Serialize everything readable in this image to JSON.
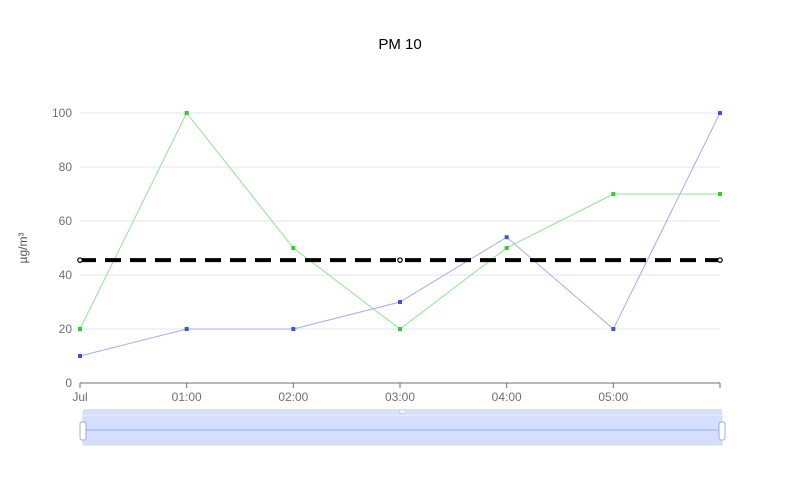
{
  "chart_data": {
    "type": "line",
    "title": "PM 10",
    "xlabel": "",
    "ylabel": "µg/m³",
    "x_tick_labels": [
      "Jul",
      "01:00",
      "02:00",
      "03:00",
      "04:00",
      "05:00",
      ""
    ],
    "y_ticks": [
      0,
      20,
      40,
      60,
      80,
      100
    ],
    "ylim": [
      0,
      100
    ],
    "grid": true,
    "legend": "none",
    "series": [
      {
        "color": "#3ea83e",
        "line_color": "#8fe38f",
        "marker_color": "#33cc33",
        "values": [
          20,
          100,
          50,
          20,
          50,
          70,
          70
        ]
      },
      {
        "color": "#3b55d8",
        "line_color": "#a3adf0",
        "marker_color": "#3b55d8",
        "values": [
          10,
          20,
          20,
          30,
          54,
          20,
          100
        ]
      }
    ],
    "reference_line": {
      "value": 45.5,
      "color": "#000000",
      "style": "dashed"
    },
    "data_zoom": {
      "range": [
        0,
        100
      ]
    }
  }
}
